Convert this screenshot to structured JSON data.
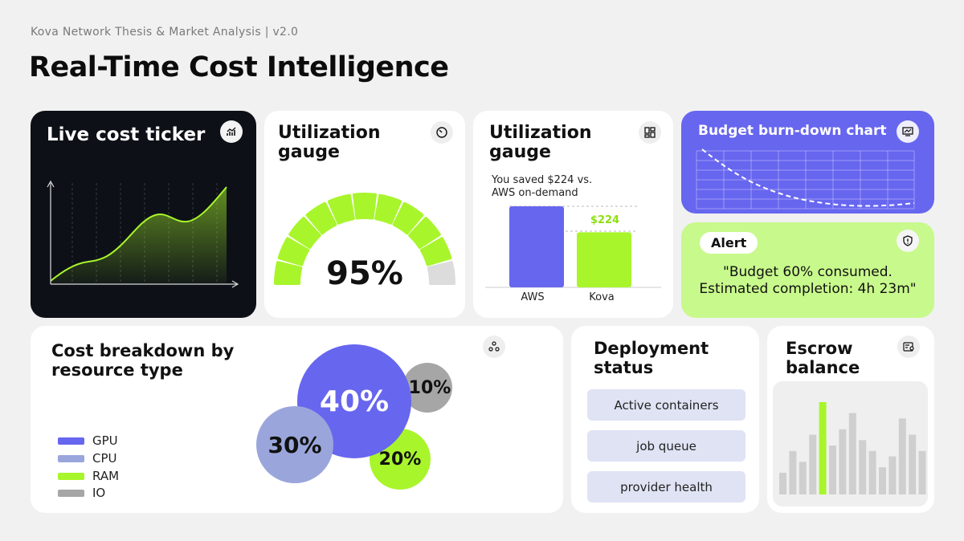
{
  "header": {
    "subtitle": "Kova Network Thesis & Market Analysis | v2.0",
    "title": "Real-Time Cost Intelligence"
  },
  "ticker": {
    "title": "Live cost ticker",
    "icon": "chart-trend-icon",
    "accent": "#a8f52c",
    "background": "#0d1117"
  },
  "gauge": {
    "title_line1": "Utilization",
    "title_line2": "gauge",
    "icon": "gauge-icon",
    "value_label": "95%",
    "value": 0.95,
    "segments_total": 11,
    "segments_filled": 10,
    "fill_color": "#a8f52c",
    "empty_color": "#dcdcdc"
  },
  "savings": {
    "title_line1": "Utilization",
    "title_line2": "gauge",
    "icon": "layout-grid-icon",
    "note_line1": "You saved $224 vs.",
    "note_line2": "AWS on-demand",
    "diff_label": "$224",
    "chart_data": {
      "type": "bar",
      "categories": [
        "AWS",
        "Kova"
      ],
      "values": [
        100,
        68
      ],
      "colors": [
        "#6766ef",
        "#a8f52c"
      ]
    }
  },
  "burndown": {
    "title": "Budget burn-down chart",
    "icon": "monitor-chart-icon",
    "background": "#6766ef"
  },
  "alert": {
    "badge": "Alert",
    "icon": "shield-alert-icon",
    "message_line1": "\"Budget 60%  consumed.",
    "message_line2": "Estimated completion: 4h 23m\"",
    "background": "#c8f98c"
  },
  "breakdown": {
    "title_line1": "Cost breakdown by",
    "title_line2": "resource type",
    "icon": "nodes-icon",
    "legend": [
      {
        "label": "GPU",
        "color": "#6766ef"
      },
      {
        "label": "CPU",
        "color": "#9aa6db"
      },
      {
        "label": "RAM",
        "color": "#a8f52c"
      },
      {
        "label": "IO",
        "color": "#a6a6a6"
      }
    ],
    "chart_data": {
      "type": "bubble",
      "categories": [
        "GPU",
        "CPU",
        "RAM",
        "IO"
      ],
      "values": [
        40,
        30,
        20,
        10
      ],
      "labels": [
        "40%",
        "30%",
        "20%",
        "10%"
      ]
    }
  },
  "deploy": {
    "title_line1": "Deployment",
    "title_line2": "status",
    "items": [
      "Active containers",
      "job queue",
      "provider health"
    ]
  },
  "escrow": {
    "title_line1": "Escrow",
    "title_line2": "balance",
    "icon": "wallet-settings-icon",
    "highlight_color": "#a8f52c",
    "bar_color": "#cfcfcf",
    "chart_data": {
      "type": "bar",
      "values": [
        4,
        8,
        6,
        11,
        17,
        9,
        12,
        15,
        10,
        8,
        5,
        7,
        14,
        11,
        8
      ],
      "highlight_index": 4
    }
  }
}
